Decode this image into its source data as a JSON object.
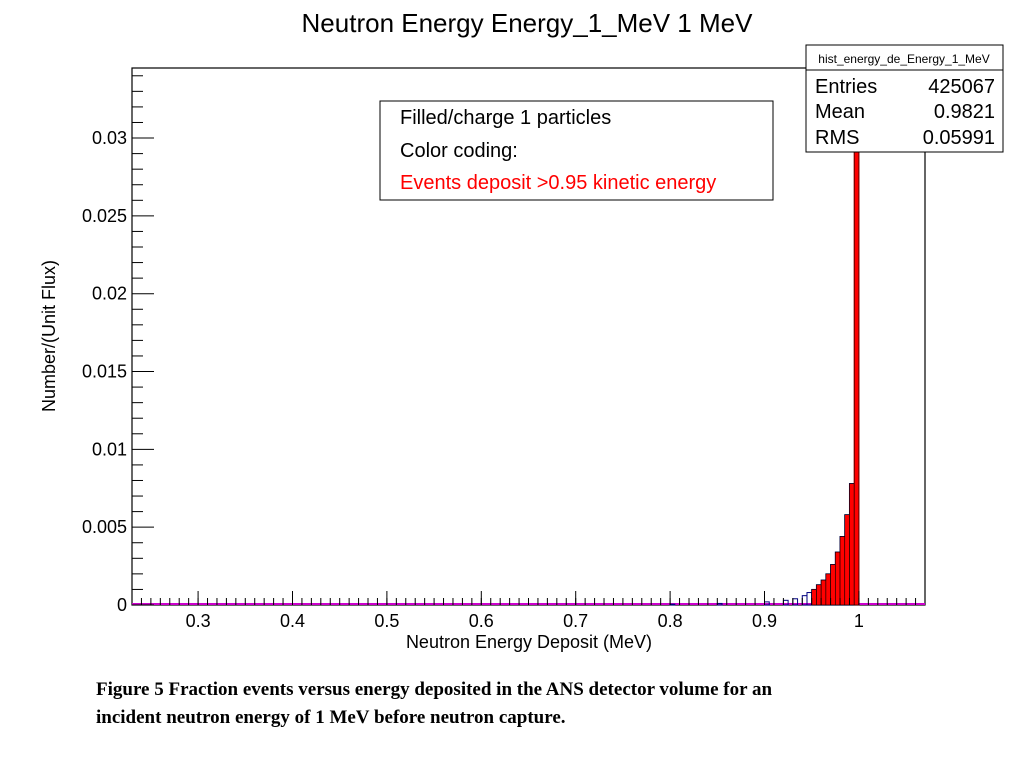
{
  "chart_data": {
    "type": "bar",
    "title": "Neutron Energy Energy_1_MeV 1 MeV",
    "xlabel": "Neutron Energy Deposit (MeV)",
    "ylabel": "Number/(Unit Flux)",
    "xlim": [
      0.23,
      1.07
    ],
    "ylim": [
      0,
      0.0345
    ],
    "xticks": [
      0.3,
      0.4,
      0.5,
      0.6,
      0.7,
      0.8,
      0.9,
      1
    ],
    "xtick_labels": [
      "0.3",
      "0.4",
      "0.5",
      "0.6",
      "0.7",
      "0.8",
      "0.9",
      "1"
    ],
    "yticks": [
      0,
      0.005,
      0.01,
      0.015,
      0.02,
      0.025,
      0.03
    ],
    "ytick_labels": [
      "0",
      "0.005",
      "0.01",
      "0.015",
      "0.02",
      "0.025",
      "0.03"
    ],
    "bin_width": 0.005,
    "series": [
      {
        "color": "#000080",
        "bins": [
          [
            0.8,
            5e-05
          ],
          [
            0.85,
            0.0001
          ],
          [
            0.9,
            0.0002
          ],
          [
            0.92,
            0.0003
          ],
          [
            0.93,
            0.0004
          ],
          [
            0.94,
            0.0006
          ],
          [
            0.945,
            0.0008
          ],
          [
            0.95,
            0.001
          ],
          [
            0.955,
            0.0013
          ],
          [
            0.96,
            0.0016
          ],
          [
            0.965,
            0.002
          ],
          [
            0.97,
            0.0026
          ],
          [
            0.975,
            0.0034
          ],
          [
            0.98,
            0.0044
          ],
          [
            0.985,
            0.0058
          ],
          [
            0.99,
            0.0078
          ],
          [
            0.995,
            0.033
          ]
        ]
      },
      {
        "name": "Events deposit >0.95 kinetic energy",
        "color": "#ff0000",
        "bins": [
          [
            0.95,
            0.001
          ],
          [
            0.955,
            0.0013
          ],
          [
            0.96,
            0.0016
          ],
          [
            0.965,
            0.002
          ],
          [
            0.97,
            0.0026
          ],
          [
            0.975,
            0.0034
          ],
          [
            0.98,
            0.0044
          ],
          [
            0.985,
            0.0058
          ],
          [
            0.99,
            0.0078
          ],
          [
            0.995,
            0.0307
          ]
        ]
      }
    ],
    "baseline_color": "#cc00cc",
    "legend": {
      "position": "top-center",
      "lines": [
        "Filled/charge 1 particles",
        "Color coding:",
        "Events deposit >0.95 kinetic energy"
      ],
      "highlight_color": "#ff0000"
    },
    "stats_box": {
      "position": "top-right",
      "title": "hist_energy_de_Energy_1_MeV",
      "rows": [
        {
          "label": "Entries",
          "value": "425067"
        },
        {
          "label": "Mean",
          "value": "0.9821"
        },
        {
          "label": "RMS",
          "value": "0.05991"
        }
      ]
    }
  },
  "caption": {
    "line1": "Figure 5 Fraction events versus energy deposited in the ANS detector volume for an",
    "line2": "incident neutron energy of 1 MeV before neutron capture."
  }
}
